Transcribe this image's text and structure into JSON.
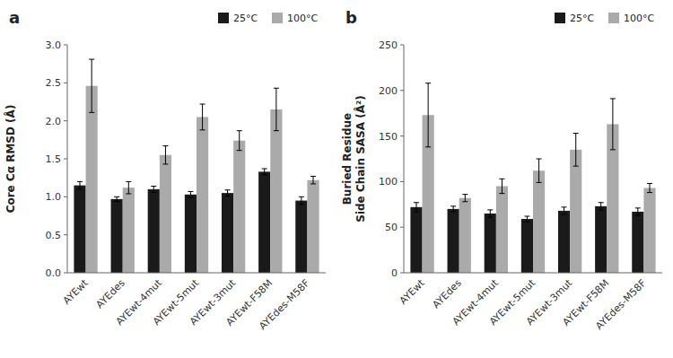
{
  "chart_data": [
    {
      "type": "bar",
      "title": "a",
      "categories": [
        "AYEwt",
        "AYEdes",
        "AYEwt-4mut",
        "AYEwt-5mut",
        "AYEwt-3mut",
        "AYEwt-F58M",
        "AYEdes-M58F"
      ],
      "y_label": "Core Cα RMSD (Å)",
      "ylim": [
        0,
        3.0
      ],
      "yticks": [
        {
          "value": 0,
          "label": "0.0"
        },
        0.5,
        {
          "value": 1,
          "label": "1.0"
        },
        1.5,
        {
          "value": 2,
          "label": "2.0"
        },
        2.5,
        {
          "value": 3,
          "label": "3.0"
        }
      ],
      "grid": false,
      "series": [
        {
          "name": "25°C",
          "color": "#1a1a1a",
          "values": [
            1.15,
            0.97,
            1.1,
            1.03,
            1.05,
            1.33,
            0.95
          ],
          "errors": [
            0.05,
            0.03,
            0.04,
            0.04,
            0.04,
            0.04,
            0.05
          ]
        },
        {
          "name": "100°C",
          "color": "#aaaaaa",
          "values": [
            2.46,
            1.12,
            1.55,
            2.05,
            1.74,
            2.15,
            1.22
          ],
          "errors": [
            0.35,
            0.08,
            0.12,
            0.17,
            0.13,
            0.28,
            0.05
          ]
        }
      ]
    },
    {
      "type": "bar",
      "title": "b",
      "categories": [
        "AYEwt",
        "AYEdes",
        "AYEwt-4mut",
        "AYEwt-5mut",
        "AYEwt-3mut",
        "AYEwt-F58M",
        "AYEdes-M58F"
      ],
      "y_label": "Buried Residue\nSide Chain SASA (Å²)",
      "ylim": [
        0,
        250
      ],
      "yticks": [
        0,
        50,
        100,
        150,
        200,
        250
      ],
      "grid": false,
      "series": [
        {
          "name": "25°C",
          "color": "#1a1a1a",
          "values": [
            72,
            70,
            65,
            59,
            68,
            73,
            67
          ],
          "errors": [
            5,
            3,
            4,
            3,
            4,
            4,
            4
          ]
        },
        {
          "name": "100°C",
          "color": "#aaaaaa",
          "values": [
            173,
            82,
            95,
            112,
            135,
            163,
            93
          ],
          "errors": [
            35,
            4,
            8,
            13,
            18,
            28,
            5
          ]
        }
      ]
    }
  ]
}
